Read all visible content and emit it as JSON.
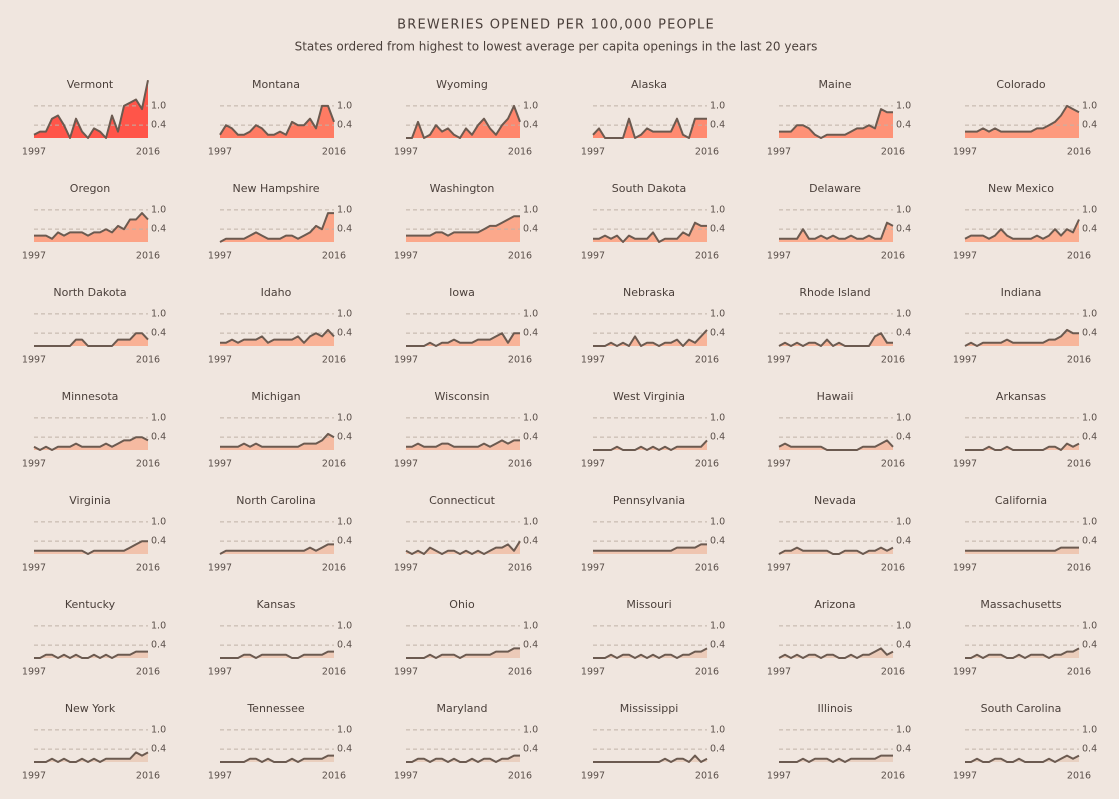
{
  "chart_data": {
    "type": "area",
    "title": "BREWERIES OPENED PER 100,000 PEOPLE",
    "subtitle": "States ordered from highest to lowest average per capita openings in the last 20 years",
    "x": [
      1997,
      1998,
      1999,
      2000,
      2001,
      2002,
      2003,
      2004,
      2005,
      2006,
      2007,
      2008,
      2009,
      2010,
      2011,
      2012,
      2013,
      2014,
      2015,
      2016
    ],
    "xticks": [
      1997,
      2016
    ],
    "ylim": [
      0,
      1.9
    ],
    "yticks": [
      {
        "value": 1,
        "label": "1.0"
      },
      0.4
    ],
    "grid": true,
    "line_color": "#6b5a50",
    "panels": [
      {
        "name": "Vermont",
        "color": "#ff5549",
        "values": [
          0.1,
          0.2,
          0.2,
          0.6,
          0.7,
          0.4,
          0.0,
          0.6,
          0.2,
          0.0,
          0.3,
          0.2,
          0.0,
          0.7,
          0.2,
          1.0,
          1.1,
          1.2,
          0.9,
          1.8
        ]
      },
      {
        "name": "Montana",
        "color": "#ff7b63",
        "values": [
          0.1,
          0.4,
          0.3,
          0.1,
          0.1,
          0.2,
          0.4,
          0.3,
          0.1,
          0.1,
          0.2,
          0.1,
          0.5,
          0.4,
          0.4,
          0.6,
          0.3,
          1.0,
          1.0,
          0.5
        ]
      },
      {
        "name": "Wyoming",
        "color": "#ff866c",
        "values": [
          0.0,
          0.0,
          0.5,
          0.0,
          0.1,
          0.4,
          0.2,
          0.3,
          0.1,
          0.0,
          0.3,
          0.1,
          0.4,
          0.6,
          0.3,
          0.1,
          0.4,
          0.6,
          1.0,
          0.5
        ]
      },
      {
        "name": "Alaska",
        "color": "#ff8a70",
        "values": [
          0.1,
          0.3,
          0.0,
          0.0,
          0.0,
          0.0,
          0.6,
          0.0,
          0.1,
          0.3,
          0.2,
          0.2,
          0.2,
          0.2,
          0.6,
          0.1,
          0.0,
          0.6,
          0.6,
          0.6
        ]
      },
      {
        "name": "Maine",
        "color": "#fe9277",
        "values": [
          0.2,
          0.2,
          0.2,
          0.4,
          0.4,
          0.3,
          0.1,
          0.0,
          0.1,
          0.1,
          0.1,
          0.1,
          0.2,
          0.3,
          0.3,
          0.4,
          0.3,
          0.9,
          0.8,
          0.8
        ]
      },
      {
        "name": "Colorado",
        "color": "#fd9a7e",
        "values": [
          0.2,
          0.2,
          0.2,
          0.3,
          0.2,
          0.3,
          0.2,
          0.2,
          0.2,
          0.2,
          0.2,
          0.2,
          0.3,
          0.3,
          0.4,
          0.5,
          0.7,
          1.0,
          0.9,
          0.8
        ]
      },
      {
        "name": "Oregon",
        "color": "#fca386",
        "values": [
          0.2,
          0.2,
          0.2,
          0.1,
          0.3,
          0.2,
          0.3,
          0.3,
          0.3,
          0.2,
          0.3,
          0.3,
          0.4,
          0.3,
          0.5,
          0.4,
          0.7,
          0.7,
          0.9,
          0.7
        ]
      },
      {
        "name": "New Hampshire",
        "color": "#fca588",
        "values": [
          0.0,
          0.1,
          0.1,
          0.1,
          0.1,
          0.2,
          0.3,
          0.2,
          0.1,
          0.1,
          0.1,
          0.2,
          0.2,
          0.1,
          0.2,
          0.3,
          0.5,
          0.4,
          0.9,
          0.9
        ]
      },
      {
        "name": "Washington",
        "color": "#fba88b",
        "values": [
          0.2,
          0.2,
          0.2,
          0.2,
          0.2,
          0.3,
          0.3,
          0.2,
          0.3,
          0.3,
          0.3,
          0.3,
          0.3,
          0.4,
          0.5,
          0.5,
          0.6,
          0.7,
          0.8,
          0.8
        ]
      },
      {
        "name": "South Dakota",
        "color": "#fbaa8d",
        "values": [
          0.1,
          0.1,
          0.2,
          0.1,
          0.2,
          0.0,
          0.2,
          0.1,
          0.1,
          0.1,
          0.3,
          0.0,
          0.1,
          0.1,
          0.1,
          0.3,
          0.2,
          0.6,
          0.5,
          0.5
        ]
      },
      {
        "name": "Delaware",
        "color": "#fbac8f",
        "values": [
          0.1,
          0.1,
          0.1,
          0.1,
          0.4,
          0.1,
          0.1,
          0.2,
          0.1,
          0.2,
          0.1,
          0.1,
          0.2,
          0.1,
          0.1,
          0.2,
          0.1,
          0.1,
          0.6,
          0.5
        ]
      },
      {
        "name": "New Mexico",
        "color": "#fbad90",
        "values": [
          0.1,
          0.2,
          0.2,
          0.2,
          0.1,
          0.2,
          0.4,
          0.2,
          0.1,
          0.1,
          0.1,
          0.1,
          0.2,
          0.1,
          0.2,
          0.4,
          0.2,
          0.4,
          0.3,
          0.7
        ]
      },
      {
        "name": "North Dakota",
        "color": "#f9b195",
        "values": [
          0.0,
          0.0,
          0.0,
          0.0,
          0.0,
          0.0,
          0.0,
          0.2,
          0.2,
          0.0,
          0.0,
          0.0,
          0.0,
          0.0,
          0.2,
          0.2,
          0.2,
          0.4,
          0.4,
          0.2
        ]
      },
      {
        "name": "Idaho",
        "color": "#f9b296",
        "values": [
          0.1,
          0.1,
          0.2,
          0.1,
          0.2,
          0.2,
          0.2,
          0.3,
          0.1,
          0.2,
          0.2,
          0.2,
          0.2,
          0.3,
          0.1,
          0.3,
          0.4,
          0.3,
          0.5,
          0.3
        ]
      },
      {
        "name": "Iowa",
        "color": "#f8b398",
        "values": [
          0.0,
          0.0,
          0.0,
          0.0,
          0.1,
          0.0,
          0.1,
          0.1,
          0.2,
          0.1,
          0.1,
          0.1,
          0.2,
          0.2,
          0.2,
          0.3,
          0.4,
          0.1,
          0.4,
          0.4
        ]
      },
      {
        "name": "Nebraska",
        "color": "#f8b499",
        "values": [
          0.0,
          0.0,
          0.0,
          0.1,
          0.0,
          0.1,
          0.0,
          0.3,
          0.0,
          0.1,
          0.1,
          0.0,
          0.1,
          0.1,
          0.2,
          0.0,
          0.2,
          0.1,
          0.3,
          0.5
        ]
      },
      {
        "name": "Rhode Island",
        "color": "#f8b59a",
        "values": [
          0.0,
          0.1,
          0.0,
          0.1,
          0.0,
          0.1,
          0.1,
          0.0,
          0.2,
          0.0,
          0.1,
          0.0,
          0.0,
          0.0,
          0.0,
          0.0,
          0.3,
          0.4,
          0.1,
          0.1
        ]
      },
      {
        "name": "Indiana",
        "color": "#f7b69b",
        "values": [
          0.0,
          0.1,
          0.0,
          0.1,
          0.1,
          0.1,
          0.1,
          0.2,
          0.1,
          0.1,
          0.1,
          0.1,
          0.1,
          0.1,
          0.2,
          0.2,
          0.3,
          0.5,
          0.4,
          0.4
        ]
      },
      {
        "name": "Minnesota",
        "color": "#f5baa1",
        "values": [
          0.1,
          0.0,
          0.1,
          0.0,
          0.1,
          0.1,
          0.1,
          0.2,
          0.1,
          0.1,
          0.1,
          0.1,
          0.2,
          0.1,
          0.2,
          0.3,
          0.3,
          0.4,
          0.4,
          0.3
        ]
      },
      {
        "name": "Michigan",
        "color": "#f5bba2",
        "values": [
          0.1,
          0.1,
          0.1,
          0.1,
          0.2,
          0.1,
          0.2,
          0.1,
          0.1,
          0.1,
          0.1,
          0.1,
          0.1,
          0.1,
          0.2,
          0.2,
          0.2,
          0.3,
          0.5,
          0.4
        ]
      },
      {
        "name": "Wisconsin",
        "color": "#f4bca4",
        "values": [
          0.1,
          0.1,
          0.2,
          0.1,
          0.1,
          0.1,
          0.2,
          0.2,
          0.1,
          0.1,
          0.1,
          0.1,
          0.1,
          0.2,
          0.1,
          0.2,
          0.3,
          0.2,
          0.3,
          0.3
        ]
      },
      {
        "name": "West Virginia",
        "color": "#f4bda5",
        "values": [
          0.0,
          0.0,
          0.0,
          0.0,
          0.1,
          0.0,
          0.0,
          0.0,
          0.1,
          0.0,
          0.1,
          0.0,
          0.1,
          0.0,
          0.1,
          0.1,
          0.1,
          0.1,
          0.1,
          0.3
        ]
      },
      {
        "name": "Hawaii",
        "color": "#f3bea7",
        "values": [
          0.1,
          0.2,
          0.1,
          0.1,
          0.1,
          0.1,
          0.1,
          0.1,
          0.0,
          0.0,
          0.0,
          0.0,
          0.0,
          0.0,
          0.1,
          0.1,
          0.1,
          0.2,
          0.3,
          0.1
        ]
      },
      {
        "name": "Arkansas",
        "color": "#f3bfa8",
        "values": [
          0.0,
          0.0,
          0.0,
          0.0,
          0.1,
          0.0,
          0.0,
          0.1,
          0.0,
          0.0,
          0.0,
          0.0,
          0.0,
          0.0,
          0.1,
          0.1,
          0.0,
          0.2,
          0.1,
          0.2
        ]
      },
      {
        "name": "Virginia",
        "color": "#f1c2ac",
        "values": [
          0.1,
          0.1,
          0.1,
          0.1,
          0.1,
          0.1,
          0.1,
          0.1,
          0.1,
          0.0,
          0.1,
          0.1,
          0.1,
          0.1,
          0.1,
          0.1,
          0.2,
          0.3,
          0.4,
          0.4
        ]
      },
      {
        "name": "North Carolina",
        "color": "#f0c3ad",
        "values": [
          0.0,
          0.1,
          0.1,
          0.1,
          0.1,
          0.1,
          0.1,
          0.1,
          0.1,
          0.1,
          0.1,
          0.1,
          0.1,
          0.1,
          0.1,
          0.2,
          0.1,
          0.2,
          0.3,
          0.3
        ]
      },
      {
        "name": "Connecticut",
        "color": "#f0c4ae",
        "values": [
          0.1,
          0.0,
          0.1,
          0.0,
          0.2,
          0.1,
          0.0,
          0.1,
          0.1,
          0.0,
          0.1,
          0.0,
          0.1,
          0.0,
          0.1,
          0.2,
          0.2,
          0.3,
          0.1,
          0.4
        ]
      },
      {
        "name": "Pennsylvania",
        "color": "#efc5b0",
        "values": [
          0.1,
          0.1,
          0.1,
          0.1,
          0.1,
          0.1,
          0.1,
          0.1,
          0.1,
          0.1,
          0.1,
          0.1,
          0.1,
          0.1,
          0.2,
          0.2,
          0.2,
          0.2,
          0.3,
          0.3
        ]
      },
      {
        "name": "Nevada",
        "color": "#efc6b1",
        "values": [
          0.0,
          0.1,
          0.1,
          0.2,
          0.1,
          0.1,
          0.1,
          0.1,
          0.1,
          0.0,
          0.0,
          0.1,
          0.1,
          0.1,
          0.0,
          0.1,
          0.1,
          0.2,
          0.1,
          0.2
        ]
      },
      {
        "name": "California",
        "color": "#eec7b2",
        "values": [
          0.1,
          0.1,
          0.1,
          0.1,
          0.1,
          0.1,
          0.1,
          0.1,
          0.1,
          0.1,
          0.1,
          0.1,
          0.1,
          0.1,
          0.1,
          0.1,
          0.2,
          0.2,
          0.2,
          0.2
        ]
      },
      {
        "name": "Kentucky",
        "color": "#edc9b6",
        "values": [
          0.0,
          0.0,
          0.1,
          0.1,
          0.0,
          0.1,
          0.0,
          0.1,
          0.0,
          0.0,
          0.1,
          0.0,
          0.1,
          0.0,
          0.1,
          0.1,
          0.1,
          0.2,
          0.2,
          0.2
        ]
      },
      {
        "name": "Kansas",
        "color": "#edcab7",
        "values": [
          0.0,
          0.0,
          0.0,
          0.0,
          0.1,
          0.1,
          0.0,
          0.1,
          0.1,
          0.1,
          0.1,
          0.1,
          0.0,
          0.0,
          0.1,
          0.1,
          0.1,
          0.1,
          0.2,
          0.2
        ]
      },
      {
        "name": "Ohio",
        "color": "#eccab8",
        "values": [
          0.0,
          0.0,
          0.0,
          0.0,
          0.1,
          0.0,
          0.1,
          0.1,
          0.1,
          0.0,
          0.1,
          0.1,
          0.1,
          0.1,
          0.1,
          0.2,
          0.2,
          0.2,
          0.3,
          0.3
        ]
      },
      {
        "name": "Missouri",
        "color": "#eccbb9",
        "values": [
          0.0,
          0.0,
          0.0,
          0.1,
          0.0,
          0.1,
          0.1,
          0.0,
          0.1,
          0.0,
          0.1,
          0.0,
          0.1,
          0.1,
          0.0,
          0.1,
          0.1,
          0.2,
          0.2,
          0.3
        ]
      },
      {
        "name": "Arizona",
        "color": "#ebccba",
        "values": [
          0.0,
          0.1,
          0.0,
          0.1,
          0.0,
          0.1,
          0.1,
          0.0,
          0.1,
          0.1,
          0.0,
          0.0,
          0.1,
          0.0,
          0.1,
          0.1,
          0.2,
          0.3,
          0.1,
          0.2
        ]
      },
      {
        "name": "Massachusetts",
        "color": "#ebcdbb",
        "values": [
          0.0,
          0.0,
          0.1,
          0.0,
          0.1,
          0.1,
          0.1,
          0.0,
          0.0,
          0.1,
          0.0,
          0.1,
          0.1,
          0.1,
          0.0,
          0.1,
          0.1,
          0.2,
          0.2,
          0.3
        ]
      },
      {
        "name": "New York",
        "color": "#eacebd",
        "values": [
          0.0,
          0.0,
          0.0,
          0.1,
          0.0,
          0.1,
          0.0,
          0.0,
          0.1,
          0.0,
          0.1,
          0.0,
          0.1,
          0.1,
          0.1,
          0.1,
          0.1,
          0.3,
          0.2,
          0.3
        ]
      },
      {
        "name": "Tennessee",
        "color": "#eacfbe",
        "values": [
          0.0,
          0.0,
          0.0,
          0.0,
          0.0,
          0.1,
          0.1,
          0.0,
          0.1,
          0.0,
          0.0,
          0.0,
          0.1,
          0.0,
          0.1,
          0.1,
          0.1,
          0.1,
          0.2,
          0.2
        ]
      },
      {
        "name": "Maryland",
        "color": "#e9cfbf",
        "values": [
          0.0,
          0.0,
          0.1,
          0.1,
          0.0,
          0.1,
          0.1,
          0.0,
          0.1,
          0.0,
          0.0,
          0.1,
          0.0,
          0.1,
          0.1,
          0.0,
          0.1,
          0.1,
          0.2,
          0.2
        ]
      },
      {
        "name": "Mississippi",
        "color": "#e9d0c0",
        "values": [
          0.0,
          0.0,
          0.0,
          0.0,
          0.0,
          0.0,
          0.0,
          0.0,
          0.0,
          0.0,
          0.0,
          0.0,
          0.1,
          0.0,
          0.1,
          0.1,
          0.0,
          0.2,
          0.0,
          0.1
        ]
      },
      {
        "name": "Illinois",
        "color": "#e9d0c1",
        "values": [
          0.0,
          0.0,
          0.0,
          0.0,
          0.1,
          0.0,
          0.1,
          0.1,
          0.1,
          0.0,
          0.1,
          0.0,
          0.1,
          0.1,
          0.1,
          0.1,
          0.1,
          0.2,
          0.2,
          0.2
        ]
      },
      {
        "name": "South Carolina",
        "color": "#e8d1c2",
        "values": [
          0.0,
          0.0,
          0.1,
          0.0,
          0.0,
          0.1,
          0.1,
          0.0,
          0.0,
          0.1,
          0.0,
          0.0,
          0.0,
          0.0,
          0.1,
          0.0,
          0.1,
          0.2,
          0.1,
          0.2
        ]
      }
    ]
  }
}
